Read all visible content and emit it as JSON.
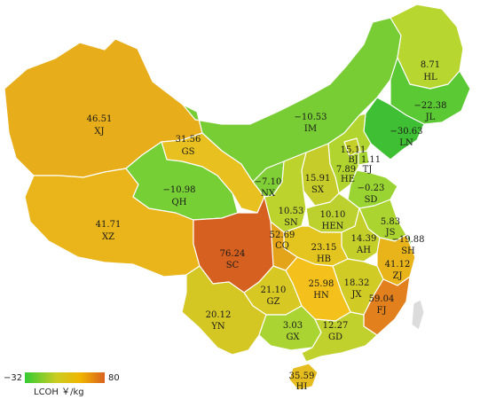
{
  "legend": {
    "min_label": "−32",
    "max_label": "80",
    "title": "LCOH ￥/kg",
    "colors": [
      "#33cc33",
      "#cccc22",
      "#f0b400",
      "#d9611f"
    ]
  },
  "provinces": [
    {
      "code": "XJ",
      "value": "46.51",
      "color": "#e7ad1a"
    },
    {
      "code": "XZ",
      "value": "41.71",
      "color": "#e9b51b"
    },
    {
      "code": "GS",
      "value": "31.56",
      "color": "#e8c020"
    },
    {
      "code": "QH",
      "value": "−10.98",
      "color": "#76cf35"
    },
    {
      "code": "IM",
      "value": "−10.53",
      "color": "#78cd34"
    },
    {
      "code": "HL",
      "value": "8.71",
      "color": "#b7d62f"
    },
    {
      "code": "JL",
      "value": "−22.38",
      "color": "#5bc933"
    },
    {
      "code": "LN",
      "value": "−30.63",
      "color": "#3fbf33"
    },
    {
      "code": "BJ",
      "value": "15.11",
      "color": "#c6cf2a"
    },
    {
      "code": "TJ",
      "value": "1.11",
      "color": "#a5d431"
    },
    {
      "code": "HE",
      "value": "7.89",
      "color": "#b2d42e"
    },
    {
      "code": "NX",
      "value": "−7.10",
      "color": "#81cf36"
    },
    {
      "code": "SX",
      "value": "15.91",
      "color": "#c6cc29"
    },
    {
      "code": "SD",
      "value": "−0.23",
      "color": "#9ad433"
    },
    {
      "code": "SN",
      "value": "10.53",
      "color": "#bcd22d"
    },
    {
      "code": "HEN",
      "value": "10.10",
      "color": "#bcd12d"
    },
    {
      "code": "JS",
      "value": "5.83",
      "color": "#acd430"
    },
    {
      "code": "AH",
      "value": "14.39",
      "color": "#c4cf2a"
    },
    {
      "code": "SH",
      "value": "−19.88",
      "color": "#63c934"
    },
    {
      "code": "SC",
      "value": "76.24",
      "color": "#d6601f"
    },
    {
      "code": "CQ",
      "value": "52.69",
      "color": "#e4a41a"
    },
    {
      "code": "HB",
      "value": "23.15",
      "color": "#e4c520"
    },
    {
      "code": "ZJ",
      "value": "41.12",
      "color": "#e8b41a"
    },
    {
      "code": "HN",
      "value": "25.98",
      "color": "#f3c01c"
    },
    {
      "code": "JX",
      "value": "18.32",
      "color": "#d1cb25"
    },
    {
      "code": "GZ",
      "value": "21.10",
      "color": "#d8c824"
    },
    {
      "code": "FJ",
      "value": "59.04",
      "color": "#e2801d"
    },
    {
      "code": "YN",
      "value": "20.12",
      "color": "#d4c724"
    },
    {
      "code": "GX",
      "value": "3.03",
      "color": "#a9d431"
    },
    {
      "code": "GD",
      "value": "12.27",
      "color": "#c0d02c"
    },
    {
      "code": "HI",
      "value": "35.59",
      "color": "#e6bd1e"
    }
  ]
}
